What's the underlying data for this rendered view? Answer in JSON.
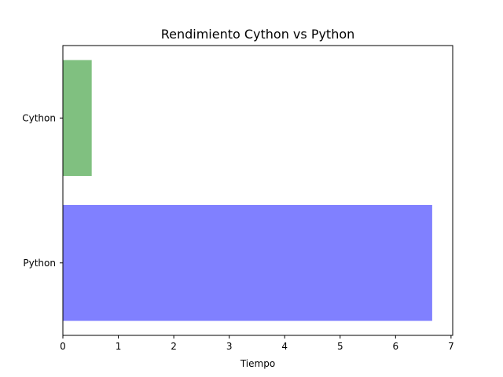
{
  "chart_data": {
    "type": "bar",
    "orientation": "horizontal",
    "title": "Rendimiento Cython vs Python",
    "xlabel": "Tiempo",
    "ylabel": "",
    "categories": [
      "Python",
      "Cython"
    ],
    "values": [
      6.66,
      0.52
    ],
    "colors": [
      "#8080ff",
      "#80c080"
    ],
    "xlim": [
      0,
      7.03
    ],
    "xticks": [
      0,
      1,
      2,
      3,
      4,
      5,
      6,
      7
    ],
    "grid": false,
    "legend": "none"
  }
}
